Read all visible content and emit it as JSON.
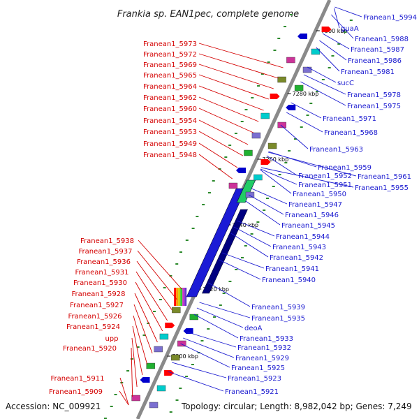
{
  "title": "Frankia sp. EAN1pec, complete genome",
  "footer": {
    "accession": "Accession: NC_009921",
    "info": "Topology: circular; Length: 8,982,042 bp; Genes: 7,249"
  },
  "ticks": [
    "7300 kbp",
    "7280 kbp",
    "7260 kbp",
    "7240 kbp",
    "7220 kbp",
    "7200 kbp"
  ],
  "left_labels": [
    "Franean1_5973",
    "Franean1_5972",
    "Franean1_5969",
    "Franean1_5965",
    "Franean1_5964",
    "Franean1_5962",
    "Franean1_5960",
    "Franean1_5954",
    "Franean1_5953",
    "Franean1_5949",
    "Franean1_5948",
    "Franean1_5938",
    "Franean1_5937",
    "Franean1_5936",
    "Franean1_5931",
    "Franean1_5930",
    "Franean1_5928",
    "Franean1_5927",
    "Franean1_5926",
    "Franean1_5924",
    "upp",
    "Franean1_5920",
    "Franean1_5911",
    "Franean1_5909"
  ],
  "right_labels": [
    "Franean1_5994",
    "guaA",
    "Franean1_5988",
    "Franean1_5987",
    "Franean1_5986",
    "Franean1_5981",
    "sucC",
    "Franean1_5978",
    "Franean1_5975",
    "Franean1_5971",
    "Franean1_5968",
    "Franean1_5963",
    "Franean1_5959",
    "Franean1_5952",
    "Franean1_5961",
    "Franean1_5951",
    "Franean1_5955",
    "Franean1_5950",
    "Franean1_5947",
    "Franean1_5946",
    "Franean1_5945",
    "Franean1_5944",
    "Franean1_5943",
    "Franean1_5942",
    "Franean1_5941",
    "Franean1_5940",
    "Franean1_5939",
    "Franean1_5935",
    "deoA",
    "Franean1_5933",
    "Franean1_5932",
    "Franean1_5929",
    "Franean1_5925",
    "Franean1_5923",
    "Franean1_5921"
  ],
  "colors": {
    "left_label": "#d40000",
    "right_label": "#1a1ad0",
    "backbone": "#8a8a8a",
    "forward": "#ff0000",
    "reverse": "#0000cc"
  }
}
